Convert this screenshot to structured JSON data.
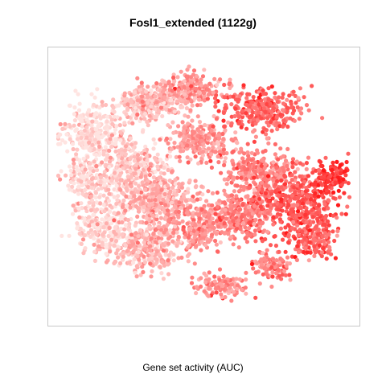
{
  "chart_data": {
    "type": "scatter",
    "title": "Fosl1_extended (1122g)",
    "xlabel": "Gene set activity (AUC)",
    "ylabel": "",
    "grid": false,
    "legend": "none",
    "color_scale": {
      "low": "#ffe4e1",
      "high": "#ff1a1a",
      "measure": "Gene set activity (AUC)"
    },
    "xlim": [
      0,
      100
    ],
    "ylim": [
      0,
      100
    ],
    "clusters": [
      {
        "cx": 13,
        "cy": 70,
        "rx": 9,
        "ry": 10,
        "n": 260,
        "activity": 0.04
      },
      {
        "cx": 12,
        "cy": 52,
        "rx": 7,
        "ry": 9,
        "n": 150,
        "activity": 0.06
      },
      {
        "cx": 17,
        "cy": 35,
        "rx": 9,
        "ry": 10,
        "n": 220,
        "activity": 0.05
      },
      {
        "cx": 26,
        "cy": 56,
        "rx": 12,
        "ry": 13,
        "n": 380,
        "activity": 0.15
      },
      {
        "cx": 30,
        "cy": 80,
        "rx": 8,
        "ry": 5,
        "n": 170,
        "activity": 0.14
      },
      {
        "cx": 36,
        "cy": 83,
        "rx": 11,
        "ry": 5,
        "n": 200,
        "activity": 0.22
      },
      {
        "cx": 36,
        "cy": 45,
        "rx": 11,
        "ry": 9,
        "n": 300,
        "activity": 0.28
      },
      {
        "cx": 31,
        "cy": 28,
        "rx": 11,
        "ry": 9,
        "n": 300,
        "activity": 0.25
      },
      {
        "cx": 46,
        "cy": 87,
        "rx": 9,
        "ry": 5,
        "n": 160,
        "activity": 0.4
      },
      {
        "cx": 49,
        "cy": 67,
        "rx": 10,
        "ry": 7,
        "n": 240,
        "activity": 0.36
      },
      {
        "cx": 49,
        "cy": 36,
        "rx": 10,
        "ry": 9,
        "n": 260,
        "activity": 0.4
      },
      {
        "cx": 56,
        "cy": 13,
        "rx": 9,
        "ry": 4,
        "n": 120,
        "activity": 0.4
      },
      {
        "cx": 69,
        "cy": 78,
        "rx": 13,
        "ry": 7,
        "n": 300,
        "activity": 0.62
      },
      {
        "cx": 69,
        "cy": 55,
        "rx": 12,
        "ry": 8,
        "n": 300,
        "activity": 0.48
      },
      {
        "cx": 64,
        "cy": 40,
        "rx": 10,
        "ry": 9,
        "n": 240,
        "activity": 0.5
      },
      {
        "cx": 82,
        "cy": 43,
        "rx": 11,
        "ry": 11,
        "n": 360,
        "activity": 0.7
      },
      {
        "cx": 86,
        "cy": 30,
        "rx": 7,
        "ry": 6,
        "n": 150,
        "activity": 0.62
      },
      {
        "cx": 92,
        "cy": 53,
        "rx": 5,
        "ry": 5,
        "n": 110,
        "activity": 0.85
      },
      {
        "cx": 72,
        "cy": 20,
        "rx": 6,
        "ry": 5,
        "n": 100,
        "activity": 0.48
      }
    ]
  }
}
